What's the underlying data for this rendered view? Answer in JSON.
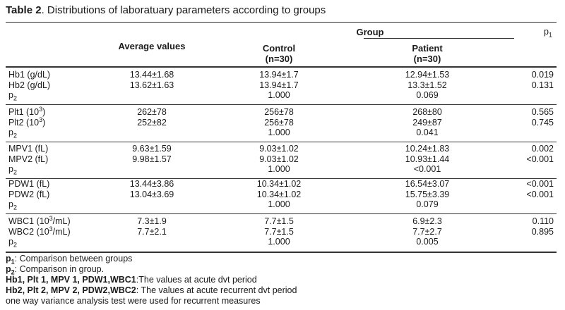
{
  "caption": {
    "label": "Table 2",
    "text": ". Distributions of laboratuary parameters according to groups"
  },
  "header": {
    "avg": "Average values",
    "group": "Group",
    "control": "Control",
    "control_n": "(n=30)",
    "patient": "Patient",
    "patient_n": "(n=30)",
    "p1": "p1"
  },
  "groups": [
    {
      "rows": [
        {
          "label": "Hb1 (g/dL)",
          "avg": "13.44±1.68",
          "control": "13.94±1.7",
          "patient": "12.94±1.53",
          "p1": "0.019"
        },
        {
          "label": "Hb2 (g/dL)",
          "avg": "13.62±1.63",
          "control": "13.94±1.7",
          "patient": "13.3±1.52",
          "p1": "0.131"
        },
        {
          "label": "p2",
          "avg": "",
          "control": "1.000",
          "patient": "0.069",
          "p1": ""
        }
      ]
    },
    {
      "rows": [
        {
          "label": "Plt1 (10³)",
          "avg": "262±78",
          "control": "256±78",
          "patient": "268±80",
          "p1": "0.565"
        },
        {
          "label": "Plt2 (10³)",
          "avg": "252±82",
          "control": "256±78",
          "patient": "249±87",
          "p1": "0.745"
        },
        {
          "label": "p2",
          "avg": "",
          "control": "1.000",
          "patient": "0.041",
          "p1": ""
        }
      ]
    },
    {
      "rows": [
        {
          "label": "MPV1 (fL)",
          "avg": "9.63±1.59",
          "control": "9.03±1.02",
          "patient": "10.24±1.83",
          "p1": "0.002"
        },
        {
          "label": "MPV2 (fL)",
          "avg": "9.98±1.57",
          "control": "9.03±1.02",
          "patient": "10.93±1.44",
          "p1": "<0.001"
        },
        {
          "label": "p2",
          "avg": "",
          "control": "1.000",
          "patient": "<0.001",
          "p1": ""
        }
      ]
    },
    {
      "rows": [
        {
          "label": "PDW1 (fL)",
          "avg": "13.44±3.86",
          "control": "10.34±1.02",
          "patient": "16.54±3.07",
          "p1": "<0.001"
        },
        {
          "label": "PDW2 (fL)",
          "avg": "13.04±3.69",
          "control": "10.34±1.02",
          "patient": "15.75±3.39",
          "p1": "<0.001"
        },
        {
          "label": "p2",
          "avg": "",
          "control": "1.000",
          "patient": "0.079",
          "p1": ""
        }
      ]
    },
    {
      "rows": [
        {
          "label": "WBC1 (10³/mL)",
          "avg": "7.3±1.9",
          "control": "7.7±1.5",
          "patient": "6.9±2.3",
          "p1": "0.110"
        },
        {
          "label": "WBC2 (10³/mL)",
          "avg": "7.7±2.1",
          "control": "7.7±1.5",
          "patient": "7.7±2.7",
          "p1": "0.895"
        },
        {
          "label": "p2",
          "avg": "",
          "control": "1.000",
          "patient": "0.005",
          "p1": ""
        }
      ]
    }
  ],
  "notes": {
    "n1_key": "p1",
    "n1_text": ": Comparison between groups",
    "n2_key": "p2",
    "n2_text": ": Comparison in group.",
    "n3_key": "Hb1, Plt 1, MPV 1, PDW1,WBC1",
    "n3_text": ":The values at acute dvt period",
    "n4_key": "Hb2, Plt 2, MPV 2, PDW2,WBC2",
    "n4_text": ": The values at acute recurrent dvt period",
    "n5_text": "one way variance analysis test were used for recurrent measures"
  }
}
